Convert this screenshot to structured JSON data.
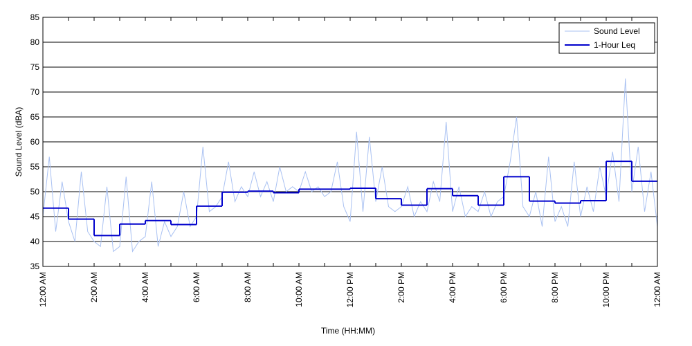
{
  "chart_data": {
    "type": "line",
    "xlabel": "Time (HH:MM)",
    "ylabel": "Sound Level (dBA)",
    "xlim": [
      0,
      24
    ],
    "xticks": [
      {
        "value": 0,
        "label": "12:00 AM"
      },
      {
        "value": 2,
        "label": "2:00 AM"
      },
      {
        "value": 4,
        "label": "4:00 AM"
      },
      {
        "value": 6,
        "label": "6:00 AM"
      },
      {
        "value": 8,
        "label": "8:00 AM"
      },
      {
        "value": 10,
        "label": "10:00 AM"
      },
      {
        "value": 12,
        "label": "12:00 PM"
      },
      {
        "value": 14,
        "label": "2:00 PM"
      },
      {
        "value": 16,
        "label": "4:00 PM"
      },
      {
        "value": 18,
        "label": "6:00 PM"
      },
      {
        "value": 20,
        "label": "8:00 PM"
      },
      {
        "value": 22,
        "label": "10:00 PM"
      },
      {
        "value": 24,
        "label": "12:00 AM"
      }
    ],
    "xminorticks": [
      1,
      3,
      5,
      7,
      9,
      11,
      13,
      15,
      17,
      19,
      21,
      23
    ],
    "ylim": [
      35,
      85
    ],
    "yticks": [
      35,
      40,
      45,
      50,
      55,
      60,
      65,
      70,
      75,
      80,
      85
    ],
    "grid": true,
    "legend": "upper right",
    "series": [
      {
        "name": "Sound Level",
        "color": "#a9c1f2",
        "style": "line",
        "x": [
          0,
          0.25,
          0.5,
          0.75,
          1,
          1.25,
          1.5,
          1.75,
          2,
          2.25,
          2.5,
          2.75,
          3,
          3.25,
          3.5,
          3.75,
          4,
          4.25,
          4.5,
          4.75,
          5,
          5.25,
          5.5,
          5.75,
          6,
          6.25,
          6.5,
          6.75,
          7,
          7.25,
          7.5,
          7.75,
          8,
          8.25,
          8.5,
          8.75,
          9,
          9.25,
          9.5,
          9.75,
          10,
          10.25,
          10.5,
          10.75,
          11,
          11.25,
          11.5,
          11.75,
          12,
          12.25,
          12.5,
          12.75,
          13,
          13.25,
          13.5,
          13.75,
          14,
          14.25,
          14.5,
          14.75,
          15,
          15.25,
          15.5,
          15.75,
          16,
          16.25,
          16.5,
          16.75,
          17,
          17.25,
          17.5,
          17.75,
          18,
          18.25,
          18.5,
          18.75,
          19,
          19.25,
          19.5,
          19.75,
          20,
          20.25,
          20.5,
          20.75,
          21,
          21.25,
          21.5,
          21.75,
          22,
          22.25,
          22.5,
          22.75,
          23,
          23.25,
          23.5,
          23.75,
          24
        ],
        "values": [
          45,
          57,
          42,
          52,
          44,
          40,
          54,
          42,
          40,
          39,
          51,
          38,
          39,
          53,
          38,
          40,
          41,
          52,
          39,
          44,
          41,
          43,
          50,
          43,
          45,
          59,
          46,
          47,
          49,
          56,
          48,
          51,
          49,
          54,
          49,
          52,
          48,
          55,
          50,
          51,
          50,
          54,
          50,
          51,
          49,
          50,
          56,
          47,
          44,
          62,
          46,
          61,
          48,
          55,
          47,
          46,
          47,
          51,
          45,
          48,
          46,
          52,
          48,
          64,
          46,
          51,
          45,
          47,
          46,
          50,
          45,
          48,
          49,
          56,
          65,
          47,
          45,
          50,
          43,
          57,
          44,
          47,
          43,
          56,
          45,
          51,
          46,
          55,
          49,
          58,
          48,
          72.7,
          50,
          59,
          46,
          54,
          43
        ]
      },
      {
        "name": "1-Hour Leq",
        "color": "#0000cc",
        "style": "step",
        "x": [
          0,
          1,
          2,
          3,
          4,
          5,
          6,
          7,
          8,
          9,
          10,
          11,
          12,
          13,
          14,
          15,
          16,
          17,
          18,
          19,
          20,
          21,
          22,
          23
        ],
        "values": [
          46.7,
          44.5,
          41.2,
          43.5,
          44.2,
          43.4,
          47.1,
          49.9,
          50.1,
          49.8,
          50.5,
          50.5,
          50.7,
          48.6,
          47.3,
          50.6,
          49.2,
          47.3,
          53.0,
          48.1,
          47.7,
          48.2,
          56.1,
          52.1
        ]
      }
    ]
  }
}
